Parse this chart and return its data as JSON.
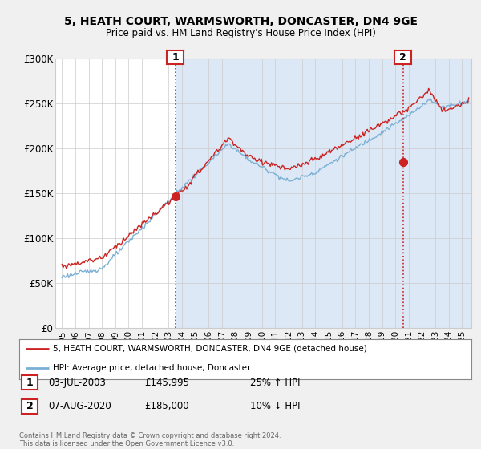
{
  "title": "5, HEATH COURT, WARMSWORTH, DONCASTER, DN4 9GE",
  "subtitle": "Price paid vs. HM Land Registry's House Price Index (HPI)",
  "ylabel_values": [
    "£0",
    "£50K",
    "£100K",
    "£150K",
    "£200K",
    "£250K",
    "£300K"
  ],
  "yticks": [
    0,
    50000,
    100000,
    150000,
    200000,
    250000,
    300000
  ],
  "ylim": [
    0,
    300000
  ],
  "xlim_start": 1994.5,
  "xlim_end": 2025.7,
  "red_color": "#cc2222",
  "blue_color": "#7bafd4",
  "shade_color": "#dce8f5",
  "marker1_x": 2003.5,
  "marker1_y": 145995,
  "marker1_label": "1",
  "marker1_date": "03-JUL-2003",
  "marker1_price": "£145,995",
  "marker1_hpi": "25% ↑ HPI",
  "marker2_x": 2020.58,
  "marker2_y": 185000,
  "marker2_label": "2",
  "marker2_date": "07-AUG-2020",
  "marker2_price": "£185,000",
  "marker2_hpi": "10% ↓ HPI",
  "legend_line1": "5, HEATH COURT, WARMSWORTH, DONCASTER, DN4 9GE (detached house)",
  "legend_line2": "HPI: Average price, detached house, Doncaster",
  "footer": "Contains HM Land Registry data © Crown copyright and database right 2024.\nThis data is licensed under the Open Government Licence v3.0.",
  "background_color": "#f0f0f0",
  "plot_bg_color": "#ffffff"
}
